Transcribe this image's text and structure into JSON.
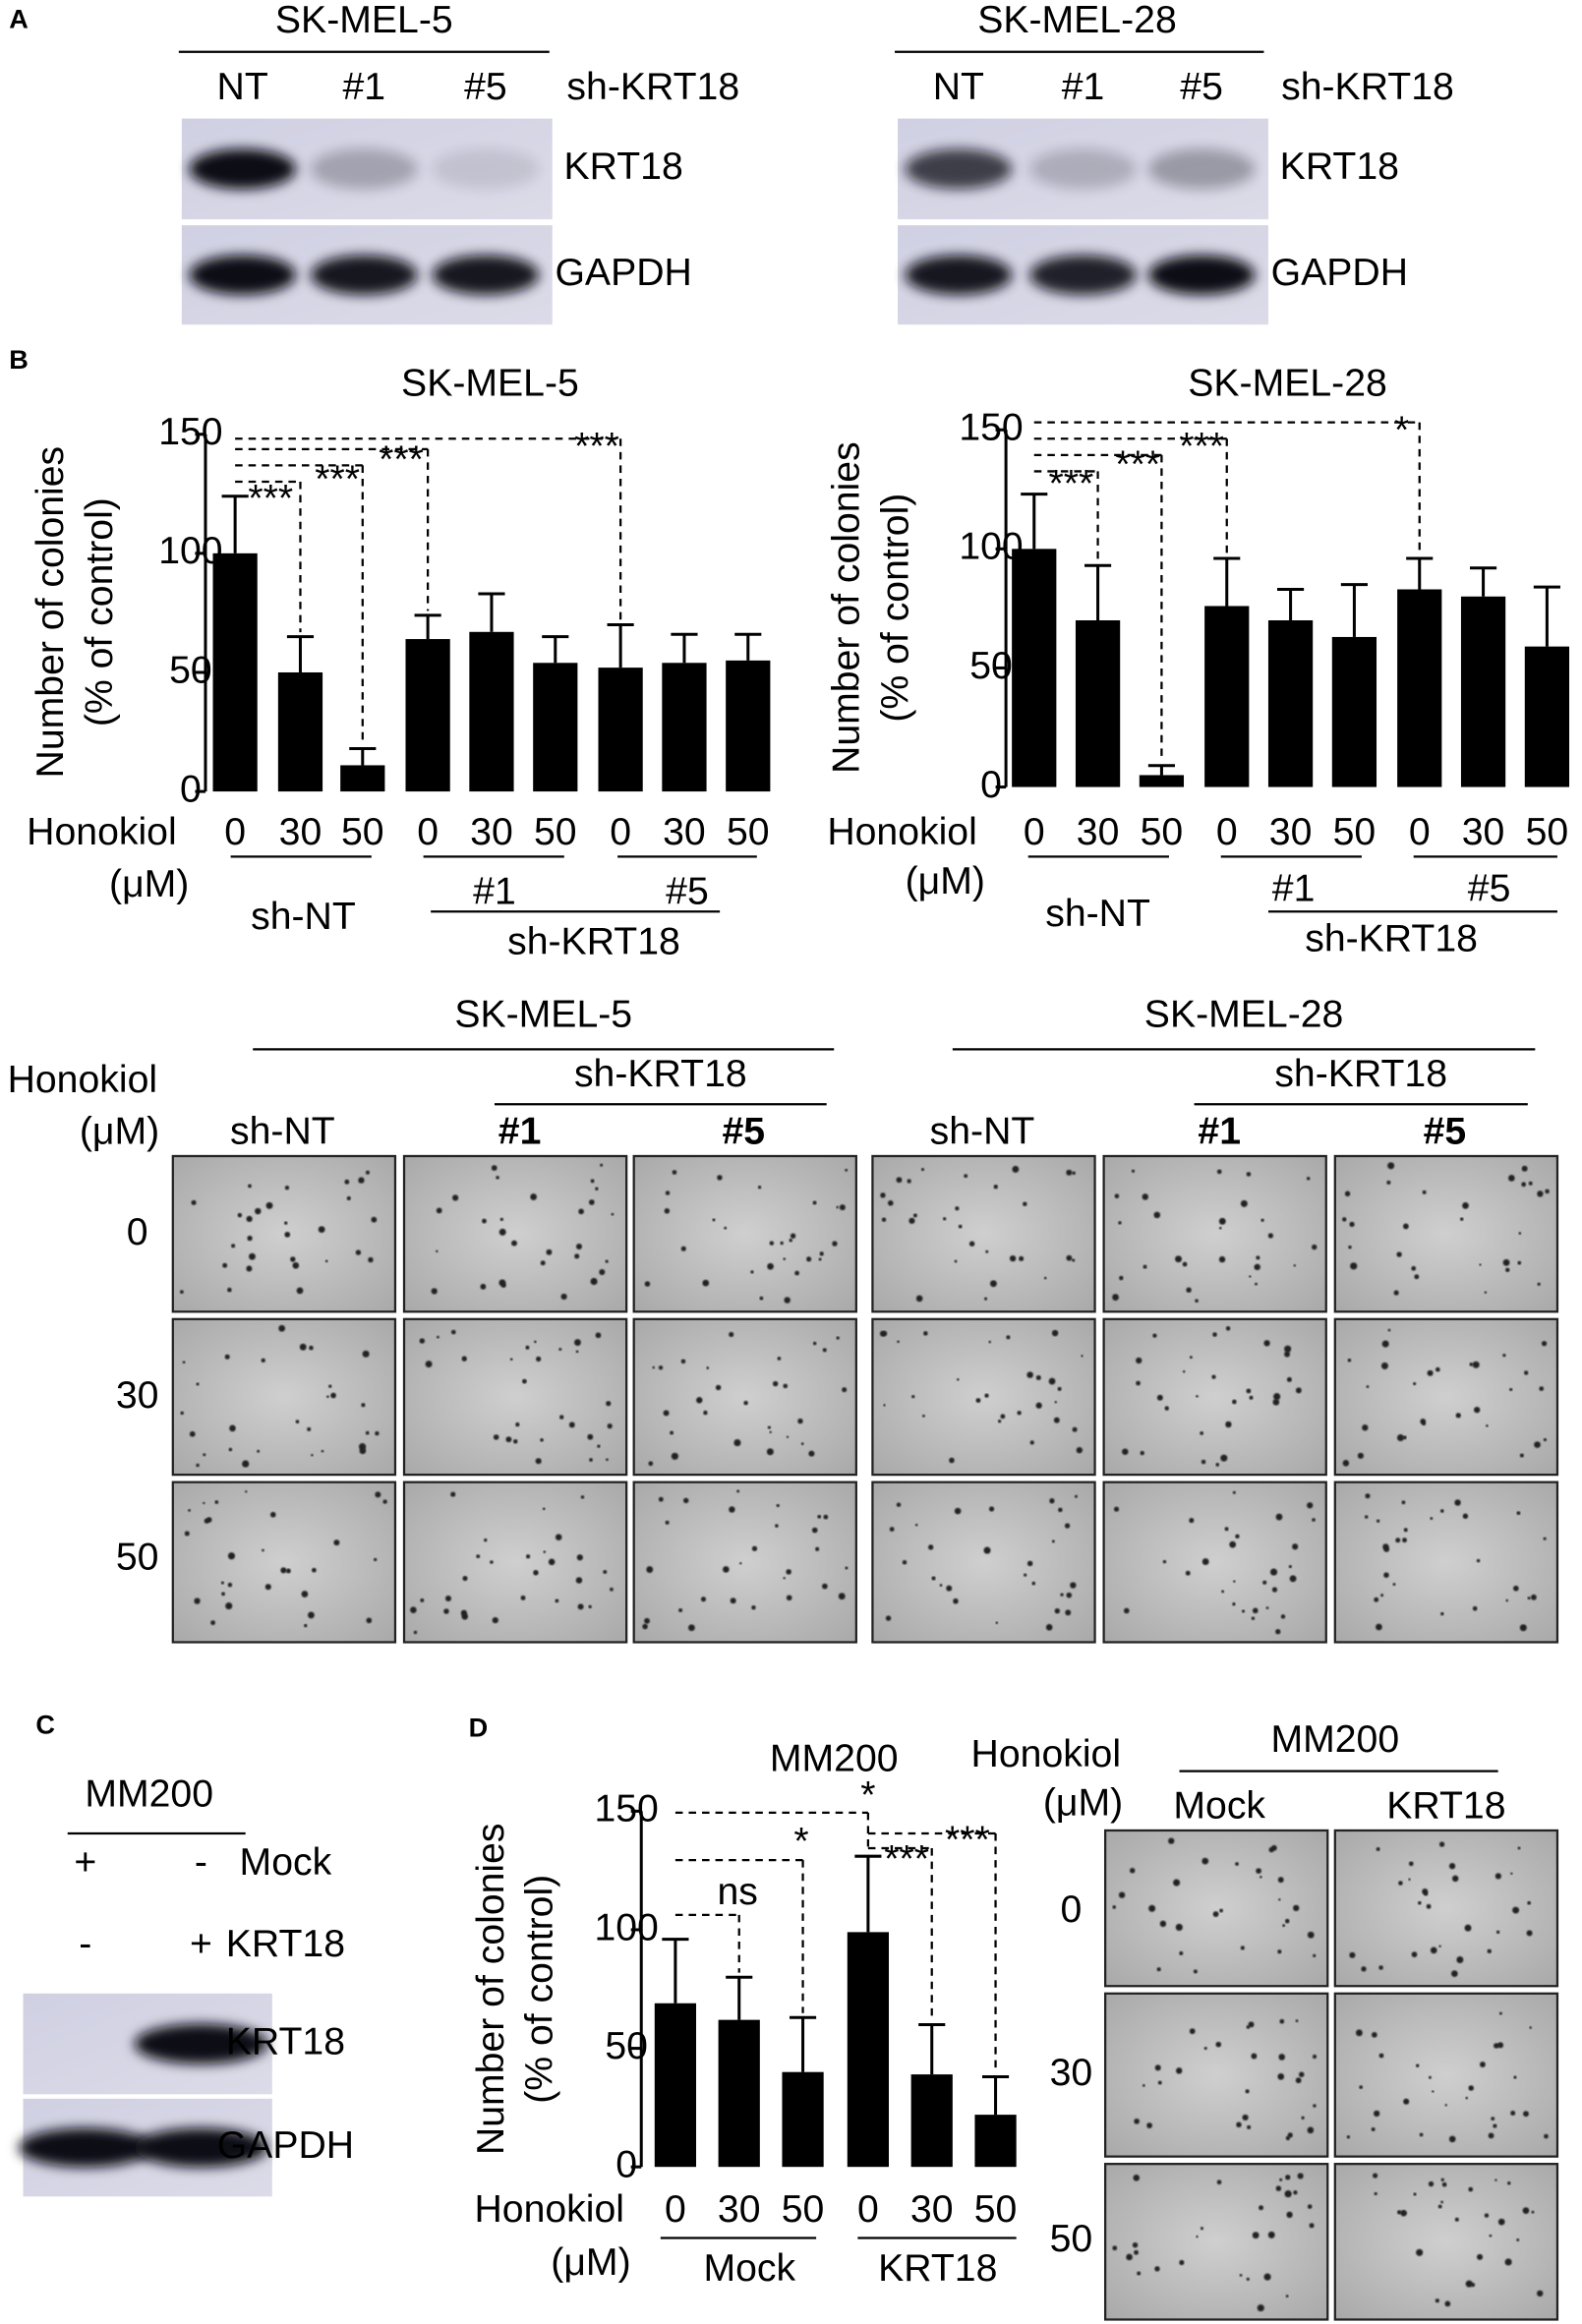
{
  "panels": [
    "A",
    "B",
    "C",
    "D"
  ],
  "blots": [
    {
      "title": "SK-MEL-5",
      "lanes": [
        "NT",
        "#1",
        "#5"
      ],
      "target": "sh-KRT18",
      "rows": [
        "KRT18",
        "GAPDH"
      ]
    },
    {
      "title": "SK-MEL-28",
      "lanes": [
        "NT",
        "#1",
        "#5"
      ],
      "target": "sh-KRT18",
      "rows": [
        "KRT18",
        "GAPDH"
      ]
    }
  ],
  "chart_data": [
    {
      "type": "bar",
      "title": "SK-MEL-5",
      "ylabel": [
        "Number of colonies",
        "(% of control)"
      ],
      "xlabel": [
        "Honokiol",
        "(μM)"
      ],
      "categories": [
        "0",
        "30",
        "50",
        "0",
        "30",
        "50",
        "0",
        "30",
        "50"
      ],
      "values": [
        100,
        50,
        11,
        64,
        67,
        54,
        52,
        54,
        55
      ],
      "errors": [
        24,
        15,
        7,
        10,
        16,
        11,
        18,
        12,
        11
      ],
      "color": "#000000",
      "ylim": [
        0,
        150
      ],
      "yticks": [
        0,
        50,
        100,
        150
      ],
      "groups": [
        "sh-NT",
        "#1",
        "#5"
      ],
      "supergroup": "sh-KRT18",
      "significance": [
        "***",
        "***",
        "***",
        "***"
      ]
    },
    {
      "type": "bar",
      "title": "SK-MEL-28",
      "ylabel": [
        "Number of colonies",
        "(% of control)"
      ],
      "xlabel": [
        "Honokiol",
        "(μM)"
      ],
      "categories": [
        "0",
        "30",
        "50",
        "0",
        "30",
        "50",
        "0",
        "30",
        "50"
      ],
      "values": [
        100,
        70,
        5,
        76,
        70,
        63,
        83,
        80,
        59
      ],
      "errors": [
        23,
        23,
        4,
        20,
        13,
        22,
        13,
        12,
        25
      ],
      "color": "#000000",
      "ylim": [
        0,
        150
      ],
      "yticks": [
        0,
        50,
        100,
        150
      ],
      "groups": [
        "sh-NT",
        "#1",
        "#5"
      ],
      "supergroup": "sh-KRT18",
      "significance": [
        "*",
        "***",
        "***",
        "***"
      ]
    },
    {
      "type": "bar",
      "title": "MM200",
      "ylabel": [
        "Number of colonies",
        "(% of control)"
      ],
      "xlabel": [
        "Honokiol",
        "(μM)"
      ],
      "categories": [
        "0",
        "30",
        "50",
        "0",
        "30",
        "50"
      ],
      "values": [
        69,
        62,
        40,
        99,
        39,
        22
      ],
      "errors": [
        27,
        18,
        23,
        32,
        21,
        16
      ],
      "color": "#000000",
      "ylim": [
        0,
        150
      ],
      "yticks": [
        0,
        50,
        100,
        150
      ],
      "groups": [
        "Mock",
        "KRT18"
      ],
      "significance": [
        "*",
        "*",
        "ns",
        "***",
        "***"
      ]
    }
  ],
  "colonies": [
    {
      "title": "SK-MEL-5",
      "target": "sh-KRT18",
      "columns": [
        "sh-NT",
        "#1",
        "#5"
      ]
    },
    {
      "title": "SK-MEL-28",
      "target": "sh-KRT18",
      "columns": [
        "sh-NT",
        "#1",
        "#5"
      ]
    }
  ],
  "colony_axis": [
    "Honokiol",
    "(μM)"
  ],
  "colony_doses": [
    "0",
    "30",
    "50"
  ],
  "overexpression": {
    "title": "MM200",
    "conditions": [
      {
        "name": "Mock",
        "signs": [
          "+",
          "-"
        ]
      },
      {
        "name": "KRT18",
        "signs": [
          "-",
          "+"
        ]
      }
    ],
    "rows": [
      "KRT18",
      "GAPDH"
    ]
  },
  "colonies_d": {
    "axis": [
      "Honokiol",
      "(μM)"
    ],
    "title": "MM200",
    "columns": [
      "Mock",
      "KRT18"
    ],
    "doses": [
      "0",
      "30",
      "50"
    ]
  }
}
